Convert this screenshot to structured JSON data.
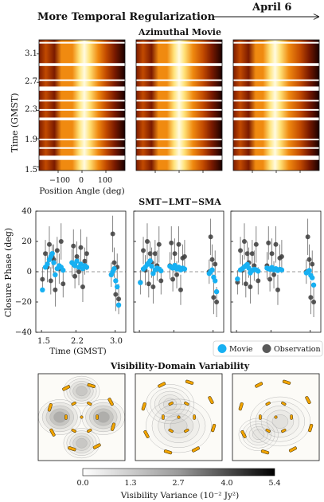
{
  "header": {
    "left_title": "More Temporal Regularization",
    "right_title": "April 6"
  },
  "top_panel": {
    "title": "Azimuthal Movie",
    "ylabel": "Time (GMST)",
    "xlabel": "Position Angle (deg)",
    "yticks": [
      "3.1",
      "2.7",
      "2.3",
      "1.9",
      "1.5"
    ],
    "xticks": [
      "−100",
      "0",
      "100"
    ],
    "colormap": [
      "#1a0000",
      "#7a1a00",
      "#c24a00",
      "#f08a10",
      "#ffe27a",
      "#fffbe0"
    ]
  },
  "middle_panel": {
    "title": "SMT−LMT−SMA",
    "ylabel": "Closure Phase (deg)",
    "xlabel": "Time (GMST)",
    "yticks": [
      "40",
      "20",
      "0",
      "−20",
      "−40"
    ],
    "xticks": [
      "1.5",
      "2.2",
      "3.0"
    ],
    "legend": {
      "movie": "Movie",
      "observation": "Observation"
    },
    "movie_color": "#17b0f2",
    "observation_color": "#3c3c3c"
  },
  "bottom_panel": {
    "title": "Visibility-Domain Variability",
    "colorbar_label": "Visibility Variance (10⁻² Jy²)",
    "colorbar_ticks": [
      "0.0",
      "1.3",
      "2.7",
      "4.0",
      "5.4"
    ],
    "baseline_color": "#f2a400"
  },
  "chart_data": [
    {
      "type": "heatmap",
      "title": "Azimuthal Movie",
      "panels": 3,
      "x_axis": {
        "label": "Position Angle (deg)",
        "range": [
          -180,
          180
        ],
        "ticks": [
          -100,
          0,
          100
        ]
      },
      "y_axis": {
        "label": "Time (GMST)",
        "range": [
          1.45,
          3.3
        ],
        "ticks": [
          1.5,
          1.9,
          2.3,
          2.7,
          3.1
        ]
      },
      "time_gaps": [
        [
          3.25,
          3.27
        ],
        [
          2.93,
          2.97
        ],
        [
          2.72,
          2.74
        ],
        [
          2.58,
          2.64
        ],
        [
          2.43,
          2.45
        ],
        [
          2.3,
          2.32
        ],
        [
          2.16,
          2.2
        ],
        [
          1.88,
          1.9
        ],
        [
          1.76,
          1.78
        ],
        [
          1.6,
          1.66
        ]
      ],
      "bright_peak_position_angle_deg": [
        10,
        0,
        -5
      ]
    },
    {
      "type": "scatter",
      "title": "SMT−LMT−SMA",
      "xlabel": "Time (GMST)",
      "ylabel": "Closure Phase (deg)",
      "xlim": [
        1.45,
        3.15
      ],
      "ylim": [
        -40,
        40
      ],
      "reference_line": 0,
      "series": [
        {
          "name": "Observation",
          "x": [
            1.52,
            1.58,
            1.62,
            1.66,
            1.69,
            1.72,
            1.75,
            1.78,
            1.82,
            1.86,
            1.9,
            1.94,
            2.12,
            2.15,
            2.18,
            2.22,
            2.26,
            2.3,
            2.34,
            2.38,
            2.42,
            2.92,
            2.95,
            2.98,
            3.01,
            3.04,
            3.07
          ],
          "y": [
            -5,
            12,
            3,
            18,
            -6,
            10,
            8,
            -12,
            14,
            2,
            20,
            -8,
            6,
            17,
            -3,
            10,
            0,
            16,
            -10,
            7,
            12,
            -2,
            25,
            6,
            -15,
            3,
            -18
          ],
          "error": [
            8,
            9,
            10,
            12,
            9,
            8,
            10,
            11,
            9,
            10,
            12,
            9,
            9,
            11,
            8,
            10,
            9,
            12,
            10,
            9,
            11,
            8,
            12,
            10,
            11,
            9,
            10
          ]
        },
        {
          "name": "Movie",
          "x": [
            1.52,
            1.58,
            1.62,
            1.66,
            1.69,
            1.72,
            1.75,
            1.78,
            1.82,
            1.86,
            1.9,
            1.94,
            2.12,
            2.15,
            2.18,
            2.22,
            2.26,
            2.3,
            2.34,
            2.38,
            2.42,
            2.92,
            2.95,
            2.98,
            3.01,
            3.04,
            3.07
          ],
          "y": [
            -12,
            3,
            5,
            8,
            10,
            12,
            6,
            -2,
            2,
            4,
            3,
            1,
            6,
            5,
            4,
            7,
            3,
            5,
            2,
            4,
            3,
            -2,
            0,
            2,
            -6,
            -10,
            -22
          ]
        }
      ]
    },
    {
      "type": "heatmap",
      "title": "Visibility-Domain Variability",
      "colorbar": {
        "label": "Visibility Variance (10⁻² Jy²)",
        "range": [
          0.0,
          5.4
        ],
        "ticks": [
          0.0,
          1.3,
          2.7,
          4.0,
          5.4
        ]
      },
      "panels": 3
    }
  ]
}
